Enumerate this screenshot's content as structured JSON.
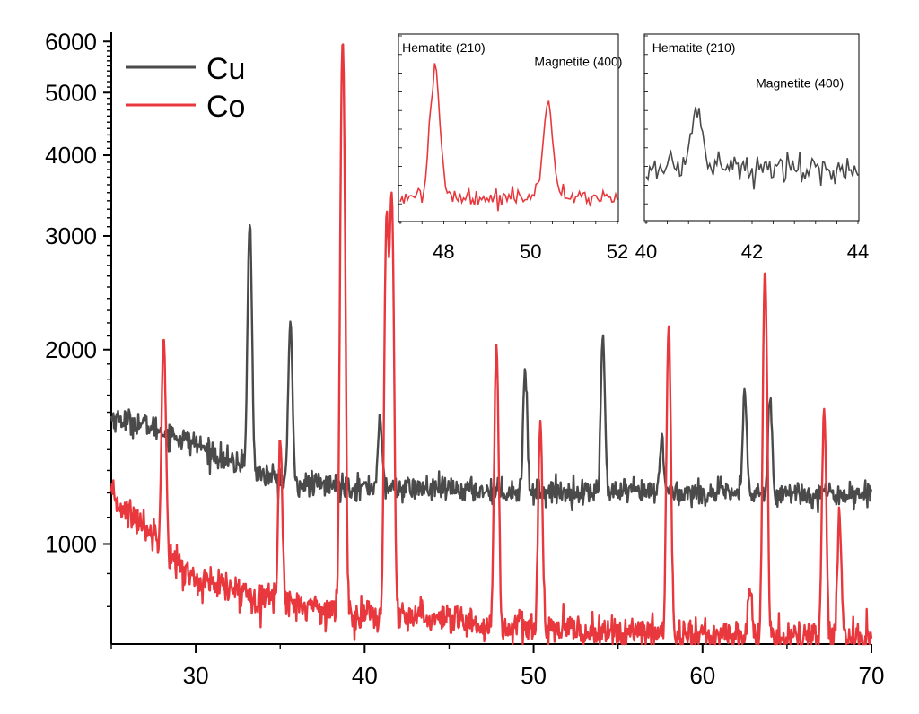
{
  "chart_data": {
    "type": "line",
    "title": "",
    "xlabel": "",
    "ylabel": "",
    "y_scale": "log",
    "xlim": [
      25,
      70
    ],
    "ylim": [
      700,
      6200
    ],
    "grid": false,
    "legend_position": "top-left",
    "x_ticks": [
      30,
      40,
      50,
      60,
      70
    ],
    "y_ticks": [
      1000,
      2000,
      3000,
      4000,
      5000,
      6000
    ],
    "colors": {
      "Cu": "#4a4a4a",
      "Co": "#e8383d"
    },
    "series": [
      {
        "name": "Cu",
        "color": "#4a4a4a",
        "baseline_points": [
          [
            25,
            1570
          ],
          [
            27,
            1530
          ],
          [
            30,
            1430
          ],
          [
            32,
            1340
          ],
          [
            34,
            1280
          ],
          [
            36,
            1240
          ],
          [
            40,
            1225
          ],
          [
            50,
            1205
          ],
          [
            60,
            1200
          ],
          [
            70,
            1195
          ]
        ],
        "noise": 0.022,
        "peaks": [
          {
            "x": 32.8,
            "y": 1360
          },
          {
            "x": 33.2,
            "y": 3150
          },
          {
            "x": 35.6,
            "y": 2200
          },
          {
            "x": 40.9,
            "y": 1580
          },
          {
            "x": 49.5,
            "y": 1870
          },
          {
            "x": 54.1,
            "y": 2100
          },
          {
            "x": 57.6,
            "y": 1460
          },
          {
            "x": 62.5,
            "y": 1710
          },
          {
            "x": 64.0,
            "y": 1690
          }
        ]
      },
      {
        "name": "Co",
        "color": "#e8383d",
        "baseline_points": [
          [
            25,
            1180
          ],
          [
            26,
            1120
          ],
          [
            28,
            1010
          ],
          [
            29,
            925
          ],
          [
            30,
            880
          ],
          [
            32,
            850
          ],
          [
            34,
            830
          ],
          [
            36,
            810
          ],
          [
            38,
            790
          ],
          [
            40,
            780
          ],
          [
            44,
            760
          ],
          [
            48,
            745
          ],
          [
            52,
            735
          ],
          [
            56,
            728
          ],
          [
            60,
            722
          ],
          [
            64,
            718
          ],
          [
            70,
            712
          ]
        ],
        "noise": 0.03,
        "peaks": [
          {
            "x": 28.1,
            "y": 2100
          },
          {
            "x": 35.0,
            "y": 1440
          },
          {
            "x": 38.7,
            "y": 6050
          },
          {
            "x": 41.3,
            "y": 3200
          },
          {
            "x": 41.6,
            "y": 3450
          },
          {
            "x": 43.3,
            "y": 810
          },
          {
            "x": 47.8,
            "y": 2020
          },
          {
            "x": 50.4,
            "y": 1540
          },
          {
            "x": 58.0,
            "y": 2180
          },
          {
            "x": 62.8,
            "y": 860
          },
          {
            "x": 63.7,
            "y": 2650
          },
          {
            "x": 67.2,
            "y": 1600
          },
          {
            "x": 68.1,
            "y": 1120
          }
        ]
      }
    ],
    "insets": [
      {
        "series": "Co",
        "color": "#e8383d",
        "xlim": [
          47,
          52
        ],
        "ylim": [
          0,
          1
        ],
        "x_ticks": [
          48,
          50,
          52
        ],
        "labels": [
          {
            "text": "Hematite (210)",
            "x": 48.0,
            "y": 0.94
          },
          {
            "text": "Magnetite (400)",
            "x": 51.1,
            "y": 0.86
          }
        ],
        "baseline": 0.12,
        "noise": 0.025,
        "peaks": [
          {
            "x": 47.8,
            "y": 0.86
          },
          {
            "x": 50.4,
            "y": 0.66
          }
        ]
      },
      {
        "series": "Cu",
        "color": "#4a4a4a",
        "xlim": [
          40,
          44
        ],
        "ylim": [
          0,
          1
        ],
        "x_ticks": [
          40,
          42,
          44
        ],
        "labels": [
          {
            "text": "Hematite (210)",
            "x": 40.9,
            "y": 0.94
          },
          {
            "text": "Magnetite (400)",
            "x": 42.9,
            "y": 0.74
          }
        ],
        "baseline": 0.29,
        "noise": 0.045,
        "peaks": [
          {
            "x": 40.95,
            "y": 0.68
          }
        ]
      }
    ]
  }
}
